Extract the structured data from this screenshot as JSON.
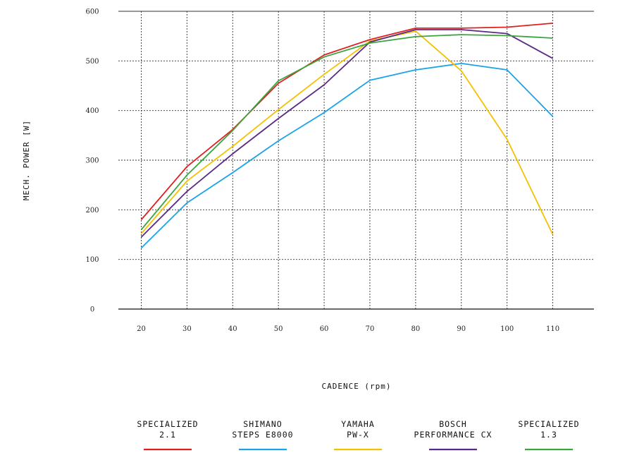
{
  "chart_data": {
    "type": "line",
    "xlabel": "CADENCE (rpm)",
    "ylabel": "MECH. POWER [W]",
    "x": [
      20,
      30,
      40,
      50,
      60,
      70,
      80,
      90,
      100,
      110
    ],
    "xlim": [
      15,
      119
    ],
    "ylim": [
      0,
      600
    ],
    "yticks": [
      "0",
      "100",
      "200",
      "300",
      "400",
      "500",
      "600"
    ],
    "xticks": [
      "20",
      "30",
      "40",
      "50",
      "60",
      "70",
      "80",
      "90",
      "100",
      "110"
    ],
    "grid": true,
    "legend_position": "bottom",
    "series": [
      {
        "legend": [
          "SPECIALIZED",
          "2.1"
        ],
        "color": "#e02020",
        "values": [
          180,
          287,
          362,
          455,
          512,
          543,
          566,
          566,
          568,
          576
        ]
      },
      {
        "legend": [
          "SHIMANO",
          "STEPS E8000"
        ],
        "color": "#1aa3e8",
        "values": [
          123,
          214,
          275,
          339,
          396,
          461,
          482,
          495,
          482,
          388
        ]
      },
      {
        "legend": [
          "YAMAHA",
          "PW-X"
        ],
        "color": "#f5c000",
        "values": [
          152,
          258,
          328,
          402,
          473,
          540,
          560,
          480,
          342,
          150
        ]
      },
      {
        "legend": [
          "BOSCH",
          "PERFORMANCE CX"
        ],
        "color": "#5b2a86",
        "values": [
          145,
          237,
          313,
          384,
          452,
          538,
          563,
          563,
          555,
          505
        ]
      },
      {
        "legend": [
          "SPECIALIZED",
          "1.3"
        ],
        "color": "#3aa540",
        "values": [
          160,
          270,
          360,
          460,
          508,
          536,
          549,
          553,
          551,
          546
        ]
      }
    ]
  }
}
